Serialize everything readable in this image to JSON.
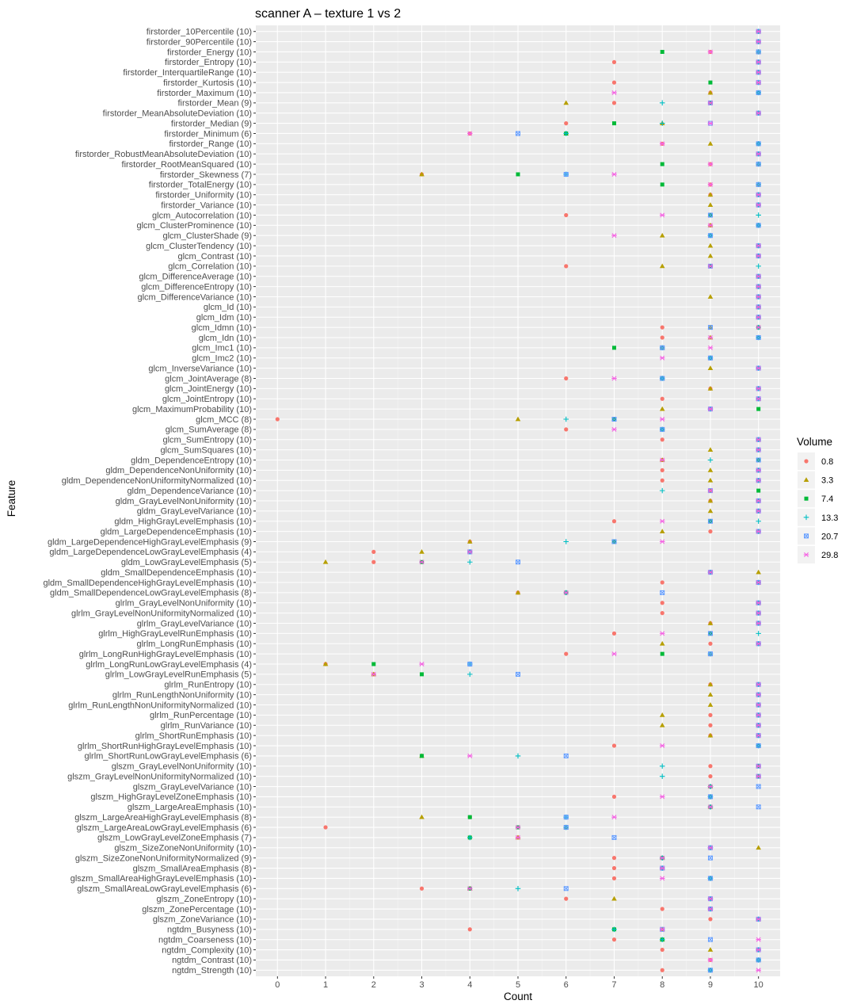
{
  "chart_data": {
    "type": "scatter",
    "title": "scanner A – texture 1 vs 2",
    "xlabel": "Count",
    "ylabel": "Feature",
    "xlim": [
      -0.45,
      10.45
    ],
    "xticks": [
      0,
      1,
      2,
      3,
      4,
      5,
      6,
      7,
      8,
      9,
      10
    ],
    "grid": true,
    "legend": {
      "title": "Volume",
      "position": "right"
    },
    "series": [
      {
        "name": "0.8",
        "color": "#F8766D",
        "shape": "circle"
      },
      {
        "name": "3.3",
        "color": "#B79F00",
        "shape": "triangle"
      },
      {
        "name": "7.4",
        "color": "#00BA38",
        "shape": "square"
      },
      {
        "name": "13.3",
        "color": "#00BFC4",
        "shape": "plus"
      },
      {
        "name": "20.7",
        "color": "#619CFF",
        "shape": "boxcross"
      },
      {
        "name": "29.8",
        "color": "#F564E3",
        "shape": "asterisk"
      }
    ],
    "features": [
      {
        "label": "firstorder_10Percentile (10)",
        "counts": [
          10,
          10,
          10,
          10,
          10,
          10
        ]
      },
      {
        "label": "firstorder_90Percentile (10)",
        "counts": [
          10,
          10,
          10,
          10,
          10,
          10
        ]
      },
      {
        "label": "firstorder_Energy (10)",
        "counts": [
          9,
          10,
          8,
          10,
          10,
          9
        ]
      },
      {
        "label": "firstorder_Entropy (10)",
        "counts": [
          7,
          10,
          10,
          10,
          10,
          10
        ]
      },
      {
        "label": "firstorder_InterquartileRange (10)",
        "counts": [
          10,
          10,
          10,
          10,
          10,
          10
        ]
      },
      {
        "label": "firstorder_Kurtosis (10)",
        "counts": [
          7,
          10,
          9,
          10,
          10,
          10
        ]
      },
      {
        "label": "firstorder_Maximum (10)",
        "counts": [
          9,
          9,
          10,
          10,
          10,
          7
        ]
      },
      {
        "label": "firstorder_Mean (9)",
        "counts": [
          7,
          6,
          9,
          8,
          9,
          9
        ]
      },
      {
        "label": "firstorder_MeanAbsoluteDeviation (10)",
        "counts": [
          10,
          10,
          10,
          10,
          10,
          10
        ]
      },
      {
        "label": "firstorder_Median (9)",
        "counts": [
          6,
          8,
          7,
          8,
          9,
          9
        ]
      },
      {
        "label": "firstorder_Minimum (6)",
        "counts": [
          4,
          6,
          6,
          6,
          5,
          4
        ]
      },
      {
        "label": "firstorder_Range (10)",
        "counts": [
          8,
          9,
          10,
          10,
          10,
          8
        ]
      },
      {
        "label": "firstorder_RobustMeanAbsoluteDeviation (10)",
        "counts": [
          10,
          10,
          10,
          10,
          10,
          10
        ]
      },
      {
        "label": "firstorder_RootMeanSquared (10)",
        "counts": [
          9,
          10,
          8,
          10,
          10,
          9
        ]
      },
      {
        "label": "firstorder_Skewness (7)",
        "counts": [
          3,
          3,
          5,
          6,
          6,
          7
        ]
      },
      {
        "label": "firstorder_TotalEnergy (10)",
        "counts": [
          9,
          10,
          8,
          10,
          10,
          9
        ]
      },
      {
        "label": "firstorder_Uniformity (10)",
        "counts": [
          9,
          9,
          10,
          10,
          10,
          10
        ]
      },
      {
        "label": "firstorder_Variance (10)",
        "counts": [
          10,
          9,
          10,
          10,
          10,
          10
        ]
      },
      {
        "label": "glcm_Autocorrelation (10)",
        "counts": [
          6,
          9,
          9,
          10,
          9,
          8
        ]
      },
      {
        "label": "glcm_ClusterProminence (10)",
        "counts": [
          9,
          9,
          10,
          10,
          10,
          9
        ]
      },
      {
        "label": "glcm_ClusterShade (9)",
        "counts": [
          9,
          8,
          9,
          9,
          9,
          7
        ]
      },
      {
        "label": "glcm_ClusterTendency (10)",
        "counts": [
          10,
          9,
          10,
          10,
          10,
          10
        ]
      },
      {
        "label": "glcm_Contrast (10)",
        "counts": [
          10,
          9,
          10,
          10,
          10,
          10
        ]
      },
      {
        "label": "glcm_Correlation (10)",
        "counts": [
          6,
          8,
          9,
          10,
          9,
          9
        ]
      },
      {
        "label": "glcm_DifferenceAverage (10)",
        "counts": [
          10,
          10,
          10,
          10,
          10,
          10
        ]
      },
      {
        "label": "glcm_DifferenceEntropy (10)",
        "counts": [
          10,
          10,
          10,
          10,
          10,
          10
        ]
      },
      {
        "label": "glcm_DifferenceVariance (10)",
        "counts": [
          10,
          9,
          10,
          10,
          10,
          10
        ]
      },
      {
        "label": "glcm_Id (10)",
        "counts": [
          10,
          10,
          10,
          10,
          10,
          10
        ]
      },
      {
        "label": "glcm_Idm (10)",
        "counts": [
          10,
          10,
          10,
          10,
          10,
          10
        ]
      },
      {
        "label": "glcm_Idmn (10)",
        "counts": [
          8,
          9,
          10,
          10,
          9,
          10
        ]
      },
      {
        "label": "glcm_Idn (10)",
        "counts": [
          8,
          9,
          10,
          10,
          10,
          9
        ]
      },
      {
        "label": "glcm_Imc1 (10)",
        "counts": [
          8,
          8,
          7,
          8,
          8,
          9
        ]
      },
      {
        "label": "glcm_Imc2 (10)",
        "counts": [
          9,
          9,
          9,
          9,
          9,
          8
        ]
      },
      {
        "label": "glcm_InverseVariance (10)",
        "counts": [
          10,
          9,
          10,
          10,
          10,
          10
        ]
      },
      {
        "label": "glcm_JointAverage (8)",
        "counts": [
          6,
          8,
          8,
          8,
          8,
          7
        ]
      },
      {
        "label": "glcm_JointEnergy (10)",
        "counts": [
          9,
          9,
          10,
          10,
          10,
          10
        ]
      },
      {
        "label": "glcm_JointEntropy (10)",
        "counts": [
          8,
          10,
          10,
          10,
          10,
          10
        ]
      },
      {
        "label": "glcm_MaximumProbability (10)",
        "counts": [
          9,
          8,
          10,
          9,
          9,
          9
        ]
      },
      {
        "label": "glcm_MCC (8)",
        "counts": [
          0,
          5,
          7,
          6,
          7,
          8
        ]
      },
      {
        "label": "glcm_SumAverage (8)",
        "counts": [
          6,
          8,
          8,
          8,
          8,
          7
        ]
      },
      {
        "label": "glcm_SumEntropy (10)",
        "counts": [
          8,
          10,
          10,
          10,
          10,
          10
        ]
      },
      {
        "label": "glcm_SumSquares (10)",
        "counts": [
          10,
          9,
          10,
          10,
          10,
          10
        ]
      },
      {
        "label": "gldm_DependenceEntropy (10)",
        "counts": [
          8,
          8,
          10,
          9,
          10,
          8
        ]
      },
      {
        "label": "gldm_DependenceNonUniformity (10)",
        "counts": [
          8,
          9,
          10,
          10,
          10,
          10
        ]
      },
      {
        "label": "gldm_DependenceNonUniformityNormalized (10)",
        "counts": [
          8,
          9,
          10,
          10,
          10,
          10
        ]
      },
      {
        "label": "gldm_DependenceVariance (10)",
        "counts": [
          9,
          9,
          10,
          8,
          9,
          9
        ]
      },
      {
        "label": "gldm_GrayLevelNonUniformity (10)",
        "counts": [
          9,
          9,
          10,
          10,
          10,
          10
        ]
      },
      {
        "label": "gldm_GrayLevelVariance (10)",
        "counts": [
          10,
          9,
          10,
          10,
          10,
          10
        ]
      },
      {
        "label": "gldm_HighGrayLevelEmphasis (10)",
        "counts": [
          7,
          9,
          9,
          10,
          9,
          8
        ]
      },
      {
        "label": "gldm_LargeDependenceEmphasis (10)",
        "counts": [
          9,
          8,
          10,
          10,
          10,
          10
        ]
      },
      {
        "label": "gldm_LargeDependenceHighGrayLevelEmphasis (9)",
        "counts": [
          4,
          4,
          7,
          6,
          7,
          8
        ]
      },
      {
        "label": "gldm_LargeDependenceLowGrayLevelEmphasis (4)",
        "counts": [
          2,
          3,
          4,
          4,
          4,
          4
        ]
      },
      {
        "label": "gldm_LowGrayLevelEmphasis (5)",
        "counts": [
          2,
          1,
          3,
          4,
          5,
          3
        ]
      },
      {
        "label": "gldm_SmallDependenceEmphasis (10)",
        "counts": [
          9,
          10,
          9,
          9,
          9,
          9
        ]
      },
      {
        "label": "gldm_SmallDependenceHighGrayLevelEmphasis (10)",
        "counts": [
          8,
          10,
          10,
          10,
          10,
          10
        ]
      },
      {
        "label": "gldm_SmallDependenceLowGrayLevelEmphasis (8)",
        "counts": [
          5,
          5,
          6,
          6,
          8,
          6
        ]
      },
      {
        "label": "glrlm_GrayLevelNonUniformity (10)",
        "counts": [
          8,
          10,
          10,
          10,
          10,
          10
        ]
      },
      {
        "label": "glrlm_GrayLevelNonUniformityNormalized (10)",
        "counts": [
          8,
          10,
          10,
          10,
          10,
          10
        ]
      },
      {
        "label": "glrlm_GrayLevelVariance (10)",
        "counts": [
          9,
          9,
          10,
          10,
          10,
          10
        ]
      },
      {
        "label": "glrlm_HighGrayLevelRunEmphasis (10)",
        "counts": [
          7,
          9,
          9,
          10,
          9,
          8
        ]
      },
      {
        "label": "glrlm_LongRunEmphasis (10)",
        "counts": [
          9,
          8,
          10,
          10,
          10,
          10
        ]
      },
      {
        "label": "glrlm_LongRunHighGrayLevelEmphasis (10)",
        "counts": [
          6,
          9,
          8,
          9,
          9,
          7
        ]
      },
      {
        "label": "glrlm_LongRunLowGrayLevelEmphasis (4)",
        "counts": [
          1,
          1,
          2,
          4,
          4,
          3
        ]
      },
      {
        "label": "glrlm_LowGrayLevelRunEmphasis (5)",
        "counts": [
          2,
          2,
          3,
          4,
          5,
          2
        ]
      },
      {
        "label": "glrlm_RunEntropy (10)",
        "counts": [
          9,
          9,
          10,
          10,
          10,
          10
        ]
      },
      {
        "label": "glrlm_RunLengthNonUniformity (10)",
        "counts": [
          10,
          9,
          10,
          10,
          10,
          10
        ]
      },
      {
        "label": "glrlm_RunLengthNonUniformityNormalized (10)",
        "counts": [
          10,
          9,
          10,
          10,
          10,
          10
        ]
      },
      {
        "label": "glrlm_RunPercentage (10)",
        "counts": [
          9,
          8,
          10,
          10,
          10,
          10
        ]
      },
      {
        "label": "glrlm_RunVariance (10)",
        "counts": [
          9,
          8,
          10,
          10,
          10,
          10
        ]
      },
      {
        "label": "glrlm_ShortRunEmphasis (10)",
        "counts": [
          9,
          9,
          10,
          10,
          10,
          10
        ]
      },
      {
        "label": "glrlm_ShortRunHighGrayLevelEmphasis (10)",
        "counts": [
          7,
          10,
          10,
          10,
          10,
          8
        ]
      },
      {
        "label": "glrlm_ShortRunLowGrayLevelEmphasis (6)",
        "counts": [
          3,
          3,
          3,
          5,
          6,
          4
        ]
      },
      {
        "label": "glszm_GrayLevelNonUniformity (10)",
        "counts": [
          9,
          10,
          10,
          8,
          10,
          10
        ]
      },
      {
        "label": "glszm_GrayLevelNonUniformityNormalized (10)",
        "counts": [
          9,
          10,
          10,
          8,
          10,
          10
        ]
      },
      {
        "label": "glszm_GrayLevelVariance (10)",
        "counts": [
          9,
          9,
          9,
          9,
          10,
          9
        ]
      },
      {
        "label": "glszm_HighGrayLevelZoneEmphasis (10)",
        "counts": [
          7,
          9,
          9,
          9,
          9,
          8
        ]
      },
      {
        "label": "glszm_LargeAreaEmphasis (10)",
        "counts": [
          9,
          9,
          9,
          9,
          10,
          9
        ]
      },
      {
        "label": "glszm_LargeAreaHighGrayLevelEmphasis (8)",
        "counts": [
          4,
          3,
          4,
          6,
          6,
          7
        ]
      },
      {
        "label": "glszm_LargeAreaLowGrayLevelEmphasis (6)",
        "counts": [
          1,
          6,
          5,
          6,
          6,
          5
        ]
      },
      {
        "label": "glszm_LowGrayLevelZoneEmphasis (7)",
        "counts": [
          5,
          5,
          4,
          4,
          7,
          5
        ]
      },
      {
        "label": "glszm_SizeZoneNonUniformity (10)",
        "counts": [
          9,
          10,
          9,
          9,
          9,
          9
        ]
      },
      {
        "label": "glszm_SizeZoneNonUniformityNormalized (9)",
        "counts": [
          7,
          8,
          8,
          8,
          9,
          8
        ]
      },
      {
        "label": "glszm_SmallAreaEmphasis (8)",
        "counts": [
          7,
          8,
          8,
          8,
          8,
          8
        ]
      },
      {
        "label": "glszm_SmallAreaHighGrayLevelEmphasis (10)",
        "counts": [
          7,
          9,
          9,
          9,
          9,
          8
        ]
      },
      {
        "label": "glszm_SmallAreaLowGrayLevelEmphasis (6)",
        "counts": [
          3,
          4,
          4,
          5,
          6,
          4
        ]
      },
      {
        "label": "glszm_ZoneEntropy (10)",
        "counts": [
          6,
          7,
          9,
          9,
          9,
          9
        ]
      },
      {
        "label": "glszm_ZonePercentage (10)",
        "counts": [
          8,
          9,
          9,
          9,
          9,
          9
        ]
      },
      {
        "label": "glszm_ZoneVariance (10)",
        "counts": [
          9,
          10,
          10,
          10,
          10,
          10
        ]
      },
      {
        "label": "ngtdm_Busyness (10)",
        "counts": [
          4,
          8,
          7,
          7,
          8,
          8
        ]
      },
      {
        "label": "ngtdm_Coarseness (10)",
        "counts": [
          7,
          8,
          8,
          8,
          9,
          10
        ]
      },
      {
        "label": "ngtdm_Complexity (10)",
        "counts": [
          8,
          9,
          10,
          10,
          10,
          10
        ]
      },
      {
        "label": "ngtdm_Contrast (10)",
        "counts": [
          9,
          10,
          10,
          10,
          10,
          9
        ]
      },
      {
        "label": "ngtdm_Strength (10)",
        "counts": [
          8,
          9,
          9,
          9,
          9,
          10
        ]
      }
    ]
  }
}
